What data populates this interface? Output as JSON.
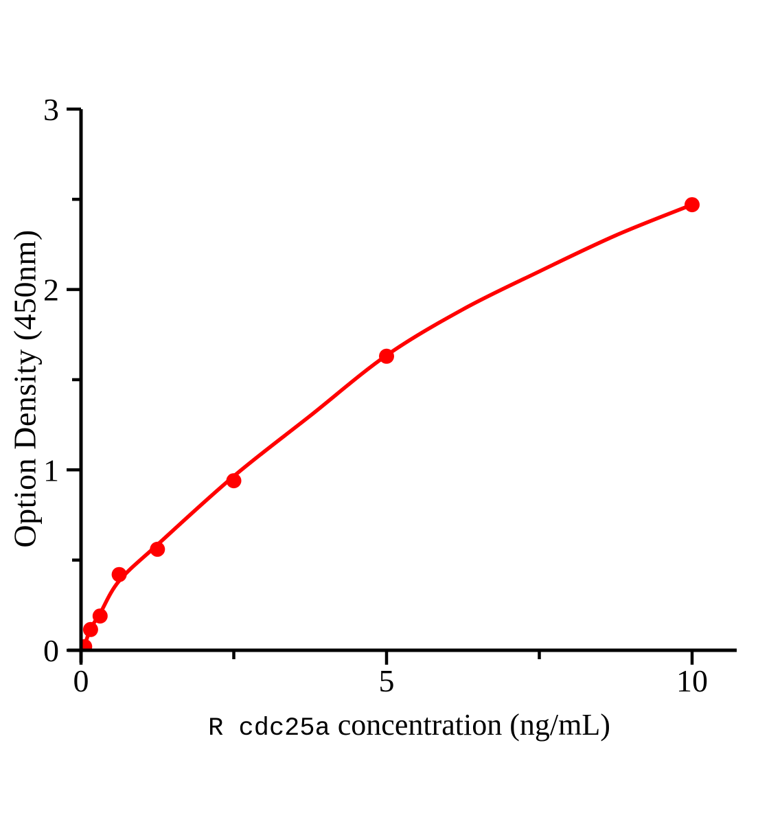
{
  "figure": {
    "background_color": "#ffffff",
    "axis_color": "#000000",
    "accent_color": "#ff0000"
  },
  "chart_data": {
    "type": "scatter",
    "title": "",
    "xlabel": "R cdc25a concentration（ng/mL）",
    "xlabel_sample": "R cdc25a",
    "xlabel_rest": "concentration（ng/mL）",
    "ylabel": "Option Density（450nm）",
    "xlim": [
      0,
      10.75
    ],
    "ylim": [
      0,
      3
    ],
    "x_major_ticks": [
      0,
      5,
      10
    ],
    "x_minor_ticks": [
      2.5,
      7.5
    ],
    "y_major_ticks": [
      0,
      1,
      2,
      3
    ],
    "y_minor_ticks": [
      0.5,
      1.5,
      2.5
    ],
    "grid": false,
    "legend_visible": false,
    "series": [
      {
        "name": "standard points",
        "role": "scatter",
        "color": "#ff0000",
        "marker": "circle",
        "points": [
          {
            "x": 0.06,
            "y": 0.02
          },
          {
            "x": 0.156,
            "y": 0.115
          },
          {
            "x": 0.3125,
            "y": 0.19
          },
          {
            "x": 0.625,
            "y": 0.42
          },
          {
            "x": 1.25,
            "y": 0.56
          },
          {
            "x": 2.5,
            "y": 0.94
          },
          {
            "x": 5,
            "y": 1.63
          },
          {
            "x": 10,
            "y": 2.47
          }
        ]
      },
      {
        "name": "fitted curve",
        "role": "line",
        "color": "#ff0000",
        "points": [
          {
            "x": 0,
            "y": 0
          },
          {
            "x": 0.08,
            "y": 0.05
          },
          {
            "x": 0.156,
            "y": 0.12
          },
          {
            "x": 0.3125,
            "y": 0.205
          },
          {
            "x": 0.625,
            "y": 0.385
          },
          {
            "x": 1.25,
            "y": 0.585
          },
          {
            "x": 2.5,
            "y": 0.965
          },
          {
            "x": 3.75,
            "y": 1.3
          },
          {
            "x": 5,
            "y": 1.635
          },
          {
            "x": 6.25,
            "y": 1.89
          },
          {
            "x": 7.5,
            "y": 2.1
          },
          {
            "x": 8.75,
            "y": 2.3
          },
          {
            "x": 10,
            "y": 2.47
          }
        ]
      }
    ]
  }
}
